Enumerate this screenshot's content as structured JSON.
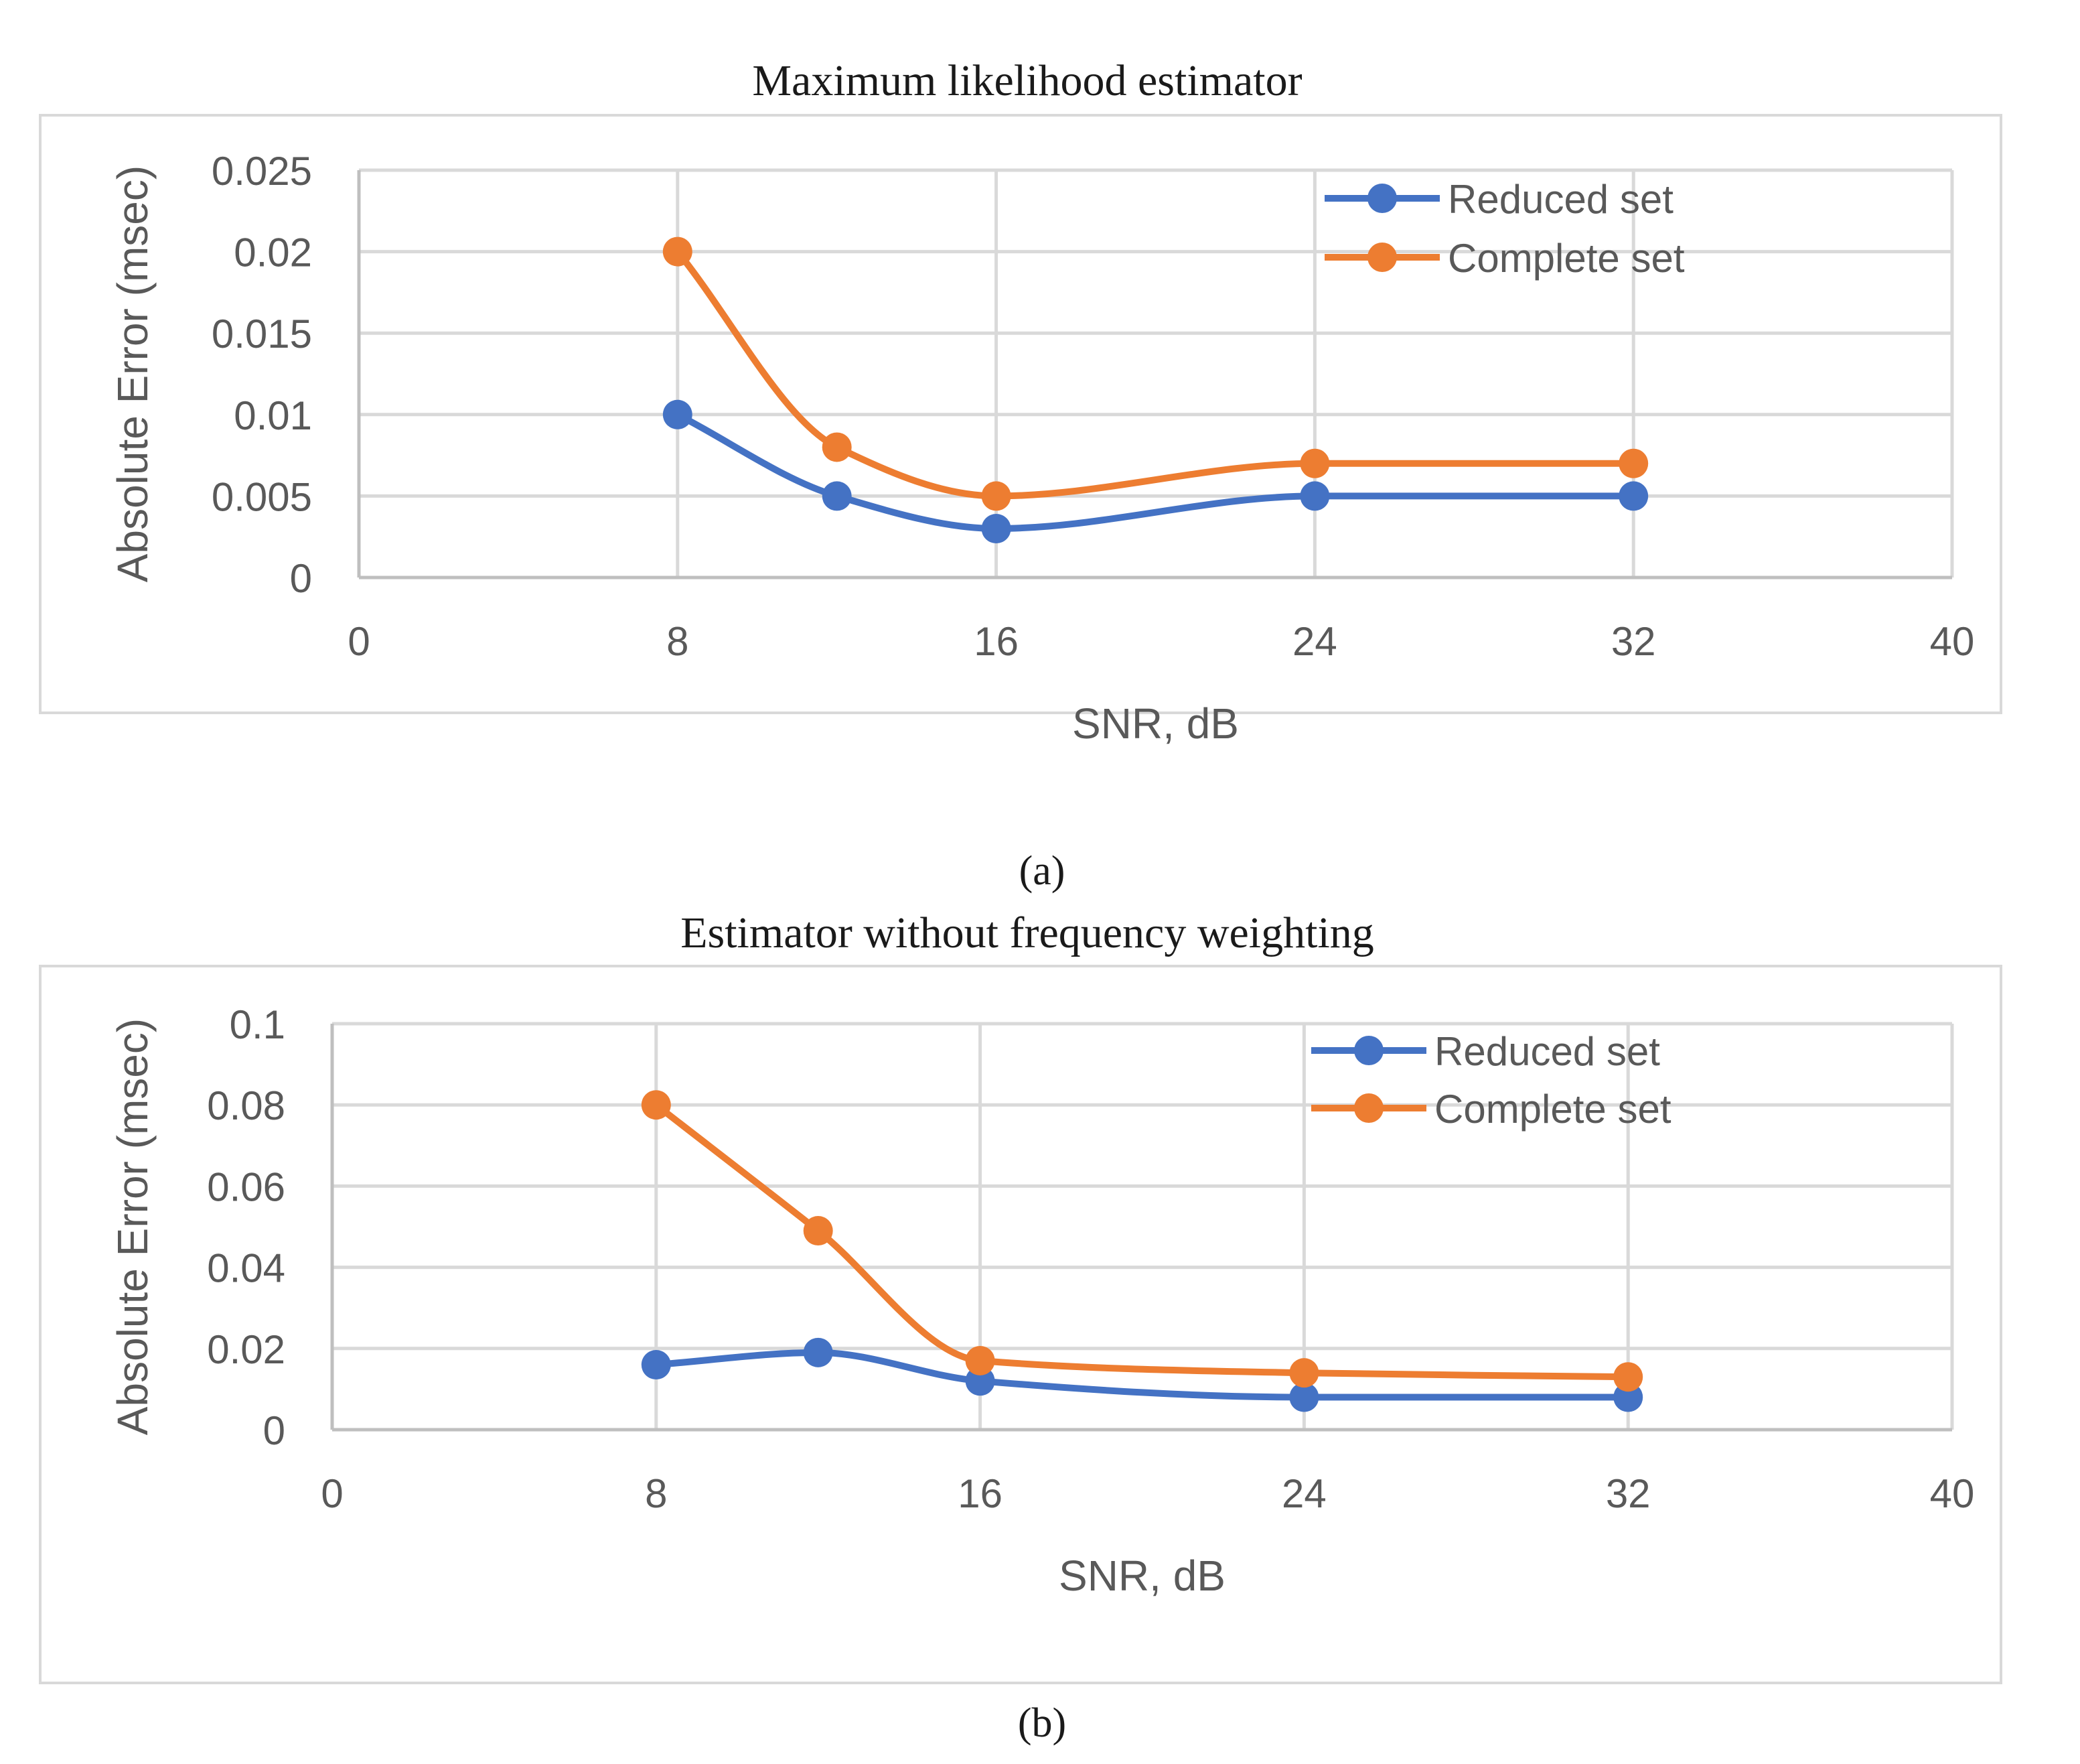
{
  "chart_data": [
    {
      "type": "line",
      "title": "Maximum likelihood estimator",
      "caption": "(a)",
      "xlabel": "SNR, dB",
      "ylabel": "Absolute Error (msec)",
      "xlim": [
        0,
        40
      ],
      "ylim": [
        0,
        0.025
      ],
      "xticks": [
        0,
        8,
        16,
        24,
        32,
        40
      ],
      "yticks": [
        0,
        0.005,
        0.01,
        0.015,
        0.02,
        0.025
      ],
      "xtick_labels": [
        "0",
        "8",
        "16",
        "24",
        "32",
        "40"
      ],
      "ytick_labels": [
        "0",
        "0.005",
        "0.01",
        "0.015",
        "0.02",
        "0.025"
      ],
      "grid": true,
      "legend_position": "top-right",
      "series": [
        {
          "name": "Reduced set",
          "color": "#4472C4",
          "x": [
            8,
            12,
            16,
            24,
            32
          ],
          "y": [
            0.01,
            0.005,
            0.003,
            0.005,
            0.005
          ]
        },
        {
          "name": "Complete set",
          "color": "#ED7D31",
          "x": [
            8,
            12,
            16,
            24,
            32
          ],
          "y": [
            0.02,
            0.008,
            0.005,
            0.007,
            0.007
          ]
        }
      ]
    },
    {
      "type": "line",
      "title": "Estimator without frequency weighting",
      "caption": "(b)",
      "xlabel": "SNR, dB",
      "ylabel": "Absolute Error (msec)",
      "xlim": [
        0,
        40
      ],
      "ylim": [
        0,
        0.1
      ],
      "xticks": [
        0,
        8,
        16,
        24,
        32,
        40
      ],
      "yticks": [
        0,
        0.02,
        0.04,
        0.06,
        0.08,
        0.1
      ],
      "xtick_labels": [
        "0",
        "8",
        "16",
        "24",
        "32",
        "40"
      ],
      "ytick_labels": [
        "0",
        "0.02",
        "0.04",
        "0.06",
        "0.08",
        "0.1"
      ],
      "grid": true,
      "legend_position": "top-right",
      "series": [
        {
          "name": "Reduced set",
          "color": "#4472C4",
          "x": [
            8,
            12,
            16,
            24,
            32
          ],
          "y": [
            0.016,
            0.019,
            0.012,
            0.008,
            0.008
          ]
        },
        {
          "name": "Complete set",
          "color": "#ED7D31",
          "x": [
            8,
            12,
            16,
            24,
            32
          ],
          "y": [
            0.08,
            0.049,
            0.017,
            0.014,
            0.013
          ]
        }
      ]
    }
  ]
}
